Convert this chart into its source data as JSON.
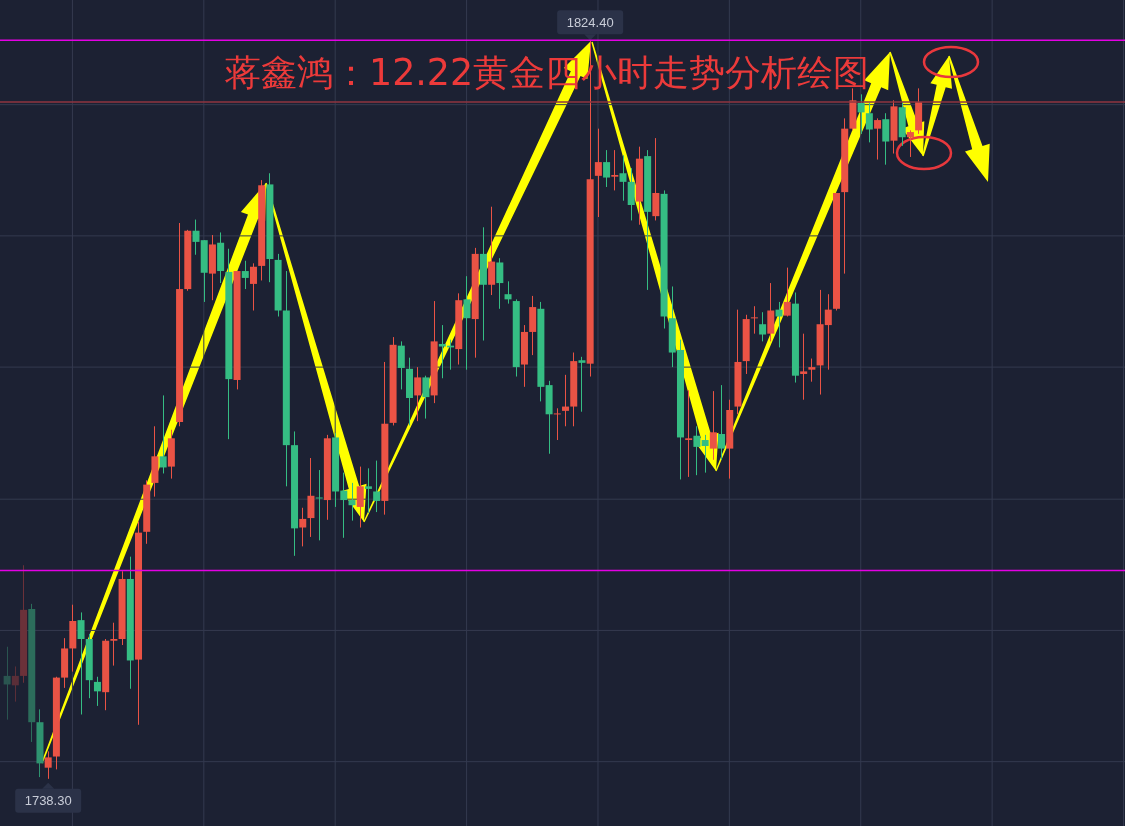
{
  "chart_data": {
    "type": "candlestick",
    "title": "蒋鑫鸿：12.22黄金四小时走势分析绘图",
    "categories": [
      null,
      null,
      null,
      null,
      null,
      null,
      null,
      null,
      null,
      null,
      null,
      null,
      null,
      null,
      null,
      null,
      null,
      null,
      null,
      null,
      null,
      null,
      null,
      null,
      null,
      null,
      null,
      null,
      null,
      null,
      null,
      null,
      null,
      null,
      null,
      null,
      null,
      null,
      null,
      null,
      null,
      null,
      null,
      null,
      null,
      null,
      null,
      null,
      null,
      null,
      null,
      null,
      null,
      null,
      null,
      null,
      null,
      null,
      null,
      null,
      null,
      null,
      null,
      null,
      null,
      null,
      null,
      null,
      null,
      null,
      null,
      null,
      null,
      null,
      null,
      null,
      null,
      null,
      null,
      null,
      null,
      null,
      null,
      null,
      null,
      null,
      null,
      null,
      null,
      null,
      null,
      null,
      null,
      null,
      null,
      null,
      null,
      null,
      null,
      null,
      null,
      null,
      null,
      null,
      null,
      null,
      null,
      null,
      null,
      null,
      null,
      null
    ],
    "ohlc": [
      [
        1750.3,
        1753.7,
        1745.2,
        1749.3
      ],
      [
        1749.2,
        1751.4,
        1747.3,
        1750.3
      ],
      [
        1750.3,
        1763.2,
        1749.5,
        1758.0
      ],
      [
        1758.1,
        1758.7,
        1742.6,
        1744.9
      ],
      [
        1744.9,
        1746.4,
        1738.5,
        1740.1
      ],
      [
        1739.6,
        1741.5,
        1738.3,
        1740.8
      ],
      [
        1740.9,
        1750.2,
        1739.4,
        1750.1
      ],
      [
        1750.1,
        1754.7,
        1748.9,
        1753.5
      ],
      [
        1753.5,
        1758.6,
        1750.8,
        1756.7
      ],
      [
        1756.8,
        1757.7,
        1745.8,
        1754.6
      ],
      [
        1754.6,
        1755.2,
        1747.7,
        1749.8
      ],
      [
        1749.6,
        1750.2,
        1746.8,
        1748.5
      ],
      [
        1748.4,
        1754.6,
        1746.3,
        1754.4
      ],
      [
        1754.4,
        1756.5,
        1751.5,
        1754.6
      ],
      [
        1754.6,
        1762.5,
        1753.9,
        1761.6
      ],
      [
        1761.6,
        1764.2,
        1748.8,
        1752.1
      ],
      [
        1752.2,
        1768.3,
        1744.6,
        1767.0
      ],
      [
        1767.1,
        1773.1,
        1765.7,
        1772.6
      ],
      [
        1772.8,
        1779.4,
        1771.2,
        1775.9
      ],
      [
        1775.9,
        1783.0,
        1773.9,
        1774.6
      ],
      [
        1774.7,
        1779.0,
        1773.3,
        1778.0
      ],
      [
        1779.9,
        1803.1,
        1779.4,
        1795.4
      ],
      [
        1795.4,
        1802.3,
        1795.2,
        1802.2
      ],
      [
        1802.2,
        1803.5,
        1799.4,
        1800.9
      ],
      [
        1801.1,
        1801.1,
        1793.9,
        1797.3
      ],
      [
        1797.2,
        1801.7,
        1794.1,
        1800.6
      ],
      [
        1800.8,
        1802.0,
        1796.1,
        1797.5
      ],
      [
        1797.4,
        1800.1,
        1777.9,
        1784.9
      ],
      [
        1784.8,
        1797.5,
        1783.7,
        1797.5
      ],
      [
        1797.5,
        1798.7,
        1795.4,
        1796.7
      ],
      [
        1796.0,
        1798.4,
        1792.9,
        1798.0
      ],
      [
        1798.1,
        1808.1,
        1796.4,
        1807.5
      ],
      [
        1807.6,
        1808.9,
        1796.2,
        1798.9
      ],
      [
        1798.8,
        1799.5,
        1792.2,
        1792.9
      ],
      [
        1792.9,
        1797.5,
        1772.4,
        1777.2
      ],
      [
        1777.2,
        1778.8,
        1764.3,
        1767.5
      ],
      [
        1767.6,
        1769.9,
        1765.4,
        1768.6
      ],
      [
        1768.7,
        1775.7,
        1766.5,
        1771.3
      ],
      [
        1771.1,
        1774.3,
        1766.1,
        1771.0
      ],
      [
        1770.8,
        1778.4,
        1768.5,
        1778.0
      ],
      [
        1778.1,
        1778.6,
        1770.0,
        1771.8
      ],
      [
        1771.9,
        1774.0,
        1766.4,
        1770.8
      ],
      [
        1770.8,
        1772.8,
        1768.4,
        1770.2
      ],
      [
        1770.0,
        1774.7,
        1767.6,
        1772.4
      ],
      [
        1772.4,
        1774.5,
        1769.3,
        1772.1
      ],
      [
        1771.8,
        1775.4,
        1769.4,
        1770.7
      ],
      [
        1770.7,
        1786.9,
        1769.1,
        1779.7
      ],
      [
        1779.8,
        1789.8,
        1779.5,
        1788.9
      ],
      [
        1788.8,
        1789.3,
        1783.7,
        1786.2
      ],
      [
        1786.1,
        1787.4,
        1779.5,
        1782.7
      ],
      [
        1783.0,
        1786.3,
        1780.0,
        1785.1
      ],
      [
        1785.1,
        1785.3,
        1780.3,
        1782.8
      ],
      [
        1783.0,
        1794.0,
        1782.1,
        1789.3
      ],
      [
        1789.0,
        1791.2,
        1785.0,
        1788.7
      ],
      [
        1788.8,
        1789.5,
        1786.0,
        1788.6
      ],
      [
        1788.4,
        1794.9,
        1786.6,
        1794.1
      ],
      [
        1794.2,
        1796.9,
        1786.0,
        1792.0
      ],
      [
        1791.9,
        1800.2,
        1787.4,
        1799.5
      ],
      [
        1799.5,
        1802.6,
        1789.4,
        1795.9
      ],
      [
        1795.9,
        1805.0,
        1794.7,
        1798.6
      ],
      [
        1798.5,
        1799.0,
        1793.1,
        1796.1
      ],
      [
        1794.8,
        1796.3,
        1793.7,
        1794.2
      ],
      [
        1794.0,
        1794.2,
        1785.2,
        1786.3
      ],
      [
        1786.6,
        1791.2,
        1784.0,
        1790.4
      ],
      [
        1790.4,
        1794.6,
        1787.7,
        1793.3
      ],
      [
        1793.1,
        1793.9,
        1782.3,
        1784.0
      ],
      [
        1784.2,
        1784.7,
        1776.2,
        1780.8
      ],
      [
        1780.8,
        1781.5,
        1777.8,
        1780.9
      ],
      [
        1781.2,
        1785.4,
        1779.4,
        1781.7
      ],
      [
        1781.7,
        1788.0,
        1779.4,
        1787.0
      ],
      [
        1787.1,
        1787.5,
        1781.1,
        1786.8
      ],
      [
        1786.7,
        1824.4,
        1785.2,
        1808.2
      ],
      [
        1808.6,
        1814.1,
        1803.8,
        1810.2
      ],
      [
        1810.2,
        1811.6,
        1807.3,
        1808.4
      ],
      [
        1808.5,
        1811.6,
        1806.9,
        1808.7
      ],
      [
        1808.9,
        1811.0,
        1805.7,
        1807.9
      ],
      [
        1807.9,
        1809.5,
        1803.4,
        1805.2
      ],
      [
        1805.6,
        1812.0,
        1802.9,
        1810.6
      ],
      [
        1810.9,
        1811.6,
        1795.3,
        1804.4
      ],
      [
        1803.9,
        1813.0,
        1803.4,
        1806.6
      ],
      [
        1806.5,
        1806.9,
        1790.8,
        1792.2
      ],
      [
        1792.0,
        1795.7,
        1786.3,
        1788.0
      ],
      [
        1788.3,
        1789.5,
        1773.2,
        1778.1
      ],
      [
        1777.8,
        1783.6,
        1773.5,
        1778.0
      ],
      [
        1778.3,
        1779.4,
        1773.7,
        1777.0
      ],
      [
        1777.8,
        1778.4,
        1774.0,
        1777.1
      ],
      [
        1776.8,
        1783.5,
        1775.5,
        1778.7
      ],
      [
        1778.5,
        1784.2,
        1775.5,
        1776.8
      ],
      [
        1776.8,
        1782.5,
        1773.3,
        1781.3
      ],
      [
        1781.7,
        1793.0,
        1780.8,
        1786.9
      ],
      [
        1787.0,
        1792.4,
        1785.5,
        1791.9
      ],
      [
        1792.0,
        1793.4,
        1790.2,
        1792.1
      ],
      [
        1791.3,
        1792.7,
        1789.3,
        1790.1
      ],
      [
        1790.2,
        1796.1,
        1789.3,
        1792.9
      ],
      [
        1793.0,
        1793.9,
        1788.6,
        1792.2
      ],
      [
        1792.3,
        1797.9,
        1792.2,
        1793.9
      ],
      [
        1793.7,
        1795.0,
        1784.5,
        1785.3
      ],
      [
        1785.5,
        1790.2,
        1782.5,
        1785.8
      ],
      [
        1786.0,
        1787.3,
        1784.6,
        1786.3
      ],
      [
        1786.5,
        1795.3,
        1783.1,
        1791.3
      ],
      [
        1791.2,
        1794.8,
        1786.0,
        1793.0
      ],
      [
        1793.1,
        1806.6,
        1792.9,
        1806.6
      ],
      [
        1806.7,
        1815.3,
        1797.2,
        1814.1
      ],
      [
        1814.1,
        1818.8,
        1813.9,
        1817.4
      ],
      [
        1817.1,
        1818.1,
        1813.5,
        1816.0
      ],
      [
        1815.9,
        1817.1,
        1812.5,
        1814.0
      ],
      [
        1814.1,
        1815.3,
        1810.5,
        1815.1
      ],
      [
        1815.2,
        1815.9,
        1809.9,
        1812.6
      ],
      [
        1812.7,
        1817.4,
        1811.2,
        1816.7
      ],
      [
        1816.6,
        1817.2,
        1812.1,
        1813.1
      ],
      [
        1813.1,
        1813.9,
        1810.8,
        1813.7
      ],
      [
        1813.9,
        1818.8,
        1813.5,
        1817.2
      ]
    ],
    "colors": [
      "#2a5550",
      "#5a2e38",
      "#6b3139",
      "#2c6d5b",
      "#2f9370",
      "#ea5345",
      "#ea5345",
      "#ea5345",
      "#ea5345",
      "#35bd83",
      "#35bd83",
      "#35bd83",
      "#ea5345",
      "#ea5345",
      "#ea5345",
      "#35bd83",
      "#ea5345",
      "#ea5345",
      "#ea5345",
      "#35bd83",
      "#ea5345",
      "#ea5345",
      "#ea5345",
      "#35bd83",
      "#35bd83",
      "#ea5345",
      "#35bd83",
      "#35bd83",
      "#ea5345",
      "#35bd83",
      "#ea5345",
      "#ea5345",
      "#35bd83",
      "#35bd83",
      "#35bd83",
      "#35bd83",
      "#ea5345",
      "#ea5345",
      "#35bd83",
      "#ea5345",
      "#35bd83",
      "#35bd83",
      "#35bd83",
      "#ea5345",
      "#35bd83",
      "#35bd83",
      "#ea5345",
      "#ea5345",
      "#35bd83",
      "#35bd83",
      "#ea5345",
      "#35bd83",
      "#ea5345",
      "#35bd83",
      "#35bd83",
      "#ea5345",
      "#35bd83",
      "#ea5345",
      "#35bd83",
      "#ea5345",
      "#35bd83",
      "#35bd83",
      "#35bd83",
      "#ea5345",
      "#ea5345",
      "#35bd83",
      "#35bd83",
      "#ea5345",
      "#ea5345",
      "#ea5345",
      "#35bd83",
      "#ea5345",
      "#ea5345",
      "#35bd83",
      "#ea5345",
      "#35bd83",
      "#35bd83",
      "#ea5345",
      "#35bd83",
      "#ea5345",
      "#35bd83",
      "#35bd83",
      "#35bd83",
      "#ea5345",
      "#35bd83",
      "#35bd83",
      "#ea5345",
      "#35bd83",
      "#ea5345",
      "#ea5345",
      "#ea5345",
      "#ea5345",
      "#35bd83",
      "#ea5345",
      "#35bd83",
      "#ea5345",
      "#35bd83",
      "#ea5345",
      "#ea5345",
      "#ea5345",
      "#ea5345",
      "#ea5345",
      "#ea5345",
      "#ea5345",
      "#35bd83",
      "#35bd83",
      "#ea5345",
      "#35bd83",
      "#ea5345",
      "#35bd83",
      "#ea5345",
      "#ea5345"
    ],
    "value_labels": [
      null,
      null,
      null,
      null,
      null,
      "1738.30",
      null,
      null,
      null,
      null,
      null,
      null,
      null,
      null,
      null,
      null,
      null,
      null,
      null,
      null,
      null,
      null,
      null,
      null,
      null,
      null,
      null,
      null,
      null,
      null,
      null,
      null,
      null,
      null,
      null,
      null,
      null,
      null,
      null,
      null,
      null,
      null,
      null,
      null,
      null,
      null,
      null,
      null,
      null,
      null,
      null,
      null,
      null,
      null,
      null,
      null,
      null,
      null,
      null,
      null,
      null,
      null,
      null,
      null,
      null,
      null,
      null,
      null,
      null,
      null,
      null,
      "1824.40",
      null,
      null,
      null,
      null,
      null,
      null,
      null,
      null,
      null,
      null,
      null,
      null,
      null,
      null,
      null,
      null,
      null,
      null,
      null,
      null,
      null,
      null,
      null,
      null,
      null,
      null,
      null,
      null,
      null,
      null,
      null,
      null,
      null,
      null,
      null,
      null,
      null,
      null,
      null,
      null
    ],
    "ylim": [
      1732.8,
      1829.1
    ],
    "yticks": [
      {
        "value": 1740.3,
        "label": null
      },
      {
        "value": 1755.6,
        "label": null
      },
      {
        "value": 1770.9,
        "label": null
      },
      {
        "value": 1786.3,
        "label": null
      },
      {
        "value": 1801.6,
        "label": null
      },
      {
        "value": 1816.9,
        "label": null
      }
    ],
    "grid": true,
    "tick_labels": false,
    "ref_lines": [
      {
        "axis": "y",
        "value": 1824.4,
        "color": "#e400e4"
      },
      {
        "axis": "y",
        "value": 1817.2,
        "color": "#8f3440"
      },
      {
        "axis": "y",
        "value": 1762.6,
        "color": "#e400e4"
      }
    ]
  }
}
